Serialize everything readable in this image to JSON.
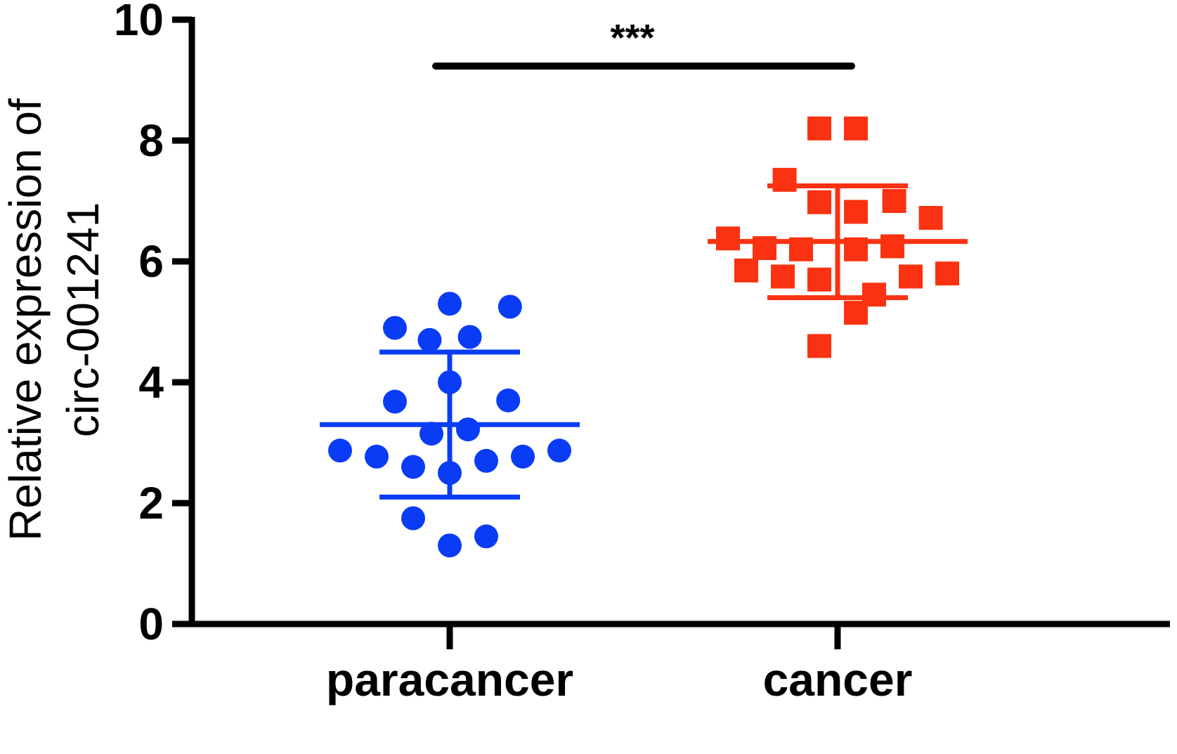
{
  "chart_data": {
    "type": "scatter",
    "ylabel_line1": "Relative expression of",
    "ylabel_line2": "circ-001241",
    "ylim": [
      0,
      10
    ],
    "yticks": [
      "0",
      "2",
      "4",
      "6",
      "8",
      "10"
    ],
    "categories": [
      "paracancer",
      "cancer"
    ],
    "significance": "***",
    "series": [
      {
        "category": "paracancer",
        "color": "#0a3cf5",
        "marker": "circle",
        "mean": 3.3,
        "sd_upper": 4.5,
        "sd_lower": 2.1,
        "points": [
          {
            "dx": 0.0,
            "y": 5.3
          },
          {
            "dx": 1.65,
            "y": 5.25
          },
          {
            "dx": -1.5,
            "y": 4.9
          },
          {
            "dx": -0.55,
            "y": 4.7
          },
          {
            "dx": 0.55,
            "y": 4.75
          },
          {
            "dx": 0.0,
            "y": 4.0
          },
          {
            "dx": -1.5,
            "y": 3.68
          },
          {
            "dx": 1.6,
            "y": 3.7
          },
          {
            "dx": -0.5,
            "y": 3.15
          },
          {
            "dx": 0.5,
            "y": 3.22
          },
          {
            "dx": -3.0,
            "y": 2.87
          },
          {
            "dx": -2.0,
            "y": 2.77
          },
          {
            "dx": -1.0,
            "y": 2.6
          },
          {
            "dx": 0.0,
            "y": 2.5
          },
          {
            "dx": 1.0,
            "y": 2.7
          },
          {
            "dx": 2.0,
            "y": 2.77
          },
          {
            "dx": 3.0,
            "y": 2.87
          },
          {
            "dx": -1.0,
            "y": 1.75
          },
          {
            "dx": 1.0,
            "y": 1.45
          },
          {
            "dx": 0.0,
            "y": 1.3
          }
        ]
      },
      {
        "category": "cancer",
        "color": "#fa3211",
        "marker": "square",
        "mean": 6.33,
        "sd_upper": 7.25,
        "sd_lower": 5.4,
        "points": [
          {
            "dx": -0.5,
            "y": 8.2
          },
          {
            "dx": 0.5,
            "y": 8.2
          },
          {
            "dx": -1.45,
            "y": 7.35
          },
          {
            "dx": -0.5,
            "y": 6.98
          },
          {
            "dx": 1.55,
            "y": 7.0
          },
          {
            "dx": 0.5,
            "y": 6.82
          },
          {
            "dx": 2.55,
            "y": 6.72
          },
          {
            "dx": -3.0,
            "y": 6.38
          },
          {
            "dx": -2.0,
            "y": 6.22
          },
          {
            "dx": -1.0,
            "y": 6.2
          },
          {
            "dx": 0.5,
            "y": 6.2
          },
          {
            "dx": 1.5,
            "y": 6.25
          },
          {
            "dx": -2.5,
            "y": 5.85
          },
          {
            "dx": -1.5,
            "y": 5.75
          },
          {
            "dx": -0.5,
            "y": 5.7
          },
          {
            "dx": 2.0,
            "y": 5.75
          },
          {
            "dx": 3.0,
            "y": 5.8
          },
          {
            "dx": 1.0,
            "y": 5.45
          },
          {
            "dx": 0.5,
            "y": 5.15
          },
          {
            "dx": -0.5,
            "y": 4.6
          }
        ]
      }
    ]
  }
}
